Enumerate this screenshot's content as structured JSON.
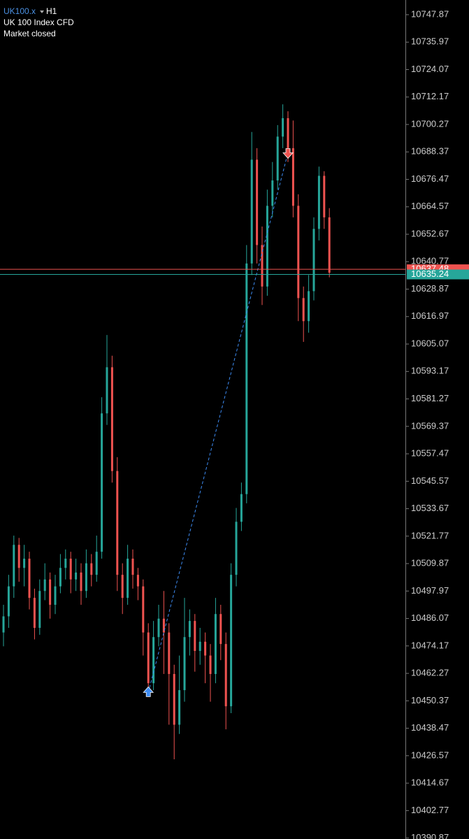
{
  "chart_data": {
    "type": "candlestick",
    "symbol": "UK100.x",
    "timeframe": "H1",
    "title": "UK 100 Index CFD",
    "status": "Market closed",
    "up_color": "#26a69a",
    "down_color": "#ef5350",
    "ylim": [
      10390.45,
      10754.24
    ],
    "yticks": [
      10747.87,
      10735.97,
      10724.07,
      10712.17,
      10700.27,
      10688.37,
      10676.47,
      10664.57,
      10652.67,
      10640.77,
      10628.87,
      10616.97,
      10605.07,
      10593.17,
      10581.27,
      10569.37,
      10557.47,
      10545.57,
      10533.67,
      10521.77,
      10509.87,
      10497.97,
      10486.07,
      10474.17,
      10462.27,
      10450.37,
      10438.47,
      10426.57,
      10414.67,
      10402.77,
      10390.87
    ],
    "open": [
      10480,
      10487,
      10500,
      10518,
      10508,
      10512,
      10495,
      10482,
      10498,
      10503,
      10492,
      10500,
      10508,
      10512,
      10503,
      10506,
      10498,
      10510,
      10505,
      10515,
      10575,
      10595,
      10550,
      10505,
      10495,
      10512,
      10505,
      10500,
      10480,
      10458,
      10478,
      10486,
      10480,
      10462,
      10440,
      10455,
      10478,
      10485,
      10472,
      10476,
      10470,
      10462,
      10488,
      10475,
      10448,
      10505,
      10528,
      10540,
      10640,
      10685,
      10648,
      10630,
      10665,
      10676,
      10695,
      10703,
      10690,
      10665,
      10625,
      10615,
      10628,
      10655,
      10678,
      10660
    ],
    "high": [
      10492,
      10505,
      10522,
      10521,
      10518,
      10515,
      10499,
      10503,
      10510,
      10506,
      10505,
      10514,
      10516,
      10515,
      10512,
      10510,
      10516,
      10514,
      10522,
      10582,
      10609,
      10600,
      10556,
      10510,
      10518,
      10516,
      10508,
      10503,
      10484,
      10485,
      10492,
      10498,
      10484,
      10466,
      10470,
      10495,
      10490,
      10488,
      10482,
      10480,
      10475,
      10495,
      10492,
      10480,
      10510,
      10534,
      10545,
      10648,
      10697,
      10690,
      10656,
      10672,
      10684,
      10700,
      10709,
      10706,
      10702,
      10670,
      10630,
      10635,
      10660,
      10682,
      10680,
      10664
    ],
    "low": [
      10474,
      10482,
      10495,
      10502,
      10500,
      10490,
      10477,
      10479,
      10494,
      10486,
      10488,
      10497,
      10503,
      10497,
      10498,
      10492,
      10495,
      10500,
      10502,
      10512,
      10570,
      10545,
      10498,
      10488,
      10492,
      10499,
      10494,
      10470,
      10452,
      10455,
      10474,
      10462,
      10440,
      10425,
      10436,
      10450,
      10470,
      10463,
      10466,
      10458,
      10450,
      10458,
      10468,
      10438,
      10445,
      10500,
      10524,
      10536,
      10635,
      10640,
      10622,
      10626,
      10660,
      10672,
      10690,
      10684,
      10660,
      10615,
      10606,
      10610,
      10624,
      10650,
      10655,
      10634
    ],
    "close": [
      10487,
      10500,
      10518,
      10508,
      10512,
      10495,
      10482,
      10498,
      10503,
      10492,
      10500,
      10508,
      10512,
      10503,
      10506,
      10498,
      10510,
      10505,
      10515,
      10575,
      10595,
      10550,
      10505,
      10495,
      10512,
      10505,
      10500,
      10480,
      10458,
      10478,
      10486,
      10480,
      10462,
      10440,
      10455,
      10478,
      10485,
      10472,
      10476,
      10470,
      10462,
      10488,
      10475,
      10448,
      10505,
      10528,
      10540,
      10640,
      10685,
      10648,
      10630,
      10665,
      10676,
      10695,
      10703,
      10690,
      10665,
      10625,
      10615,
      10628,
      10655,
      10678,
      10660,
      10636
    ],
    "ask_line": {
      "value": 10637.48,
      "color": "#ef5350"
    },
    "bid_line": {
      "value": 10635.24,
      "color": "#26a69a"
    },
    "trade": {
      "open_price": 10454,
      "close_price": 10688,
      "buy_color": "#3d8bf2",
      "sell_color": "#ef5350"
    }
  }
}
